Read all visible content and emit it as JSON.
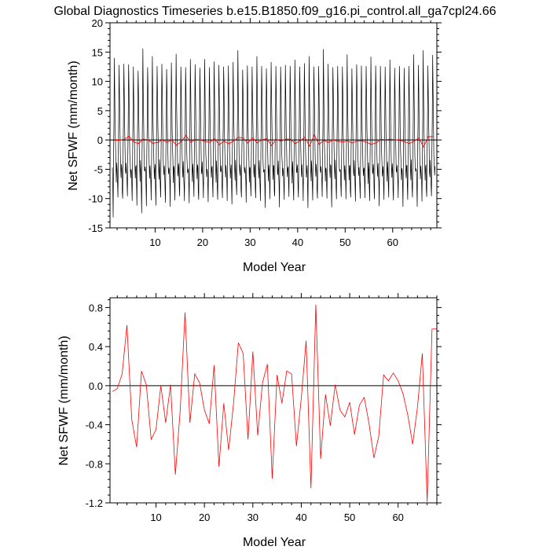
{
  "title": "Global Diagnostics Timeseries b.e15.B1850.f09_g16.pi_control.all_ga7cpl24.66",
  "colors": {
    "monthly": "#000000",
    "annual": "#ff0000",
    "zero_line": "#000000"
  },
  "chart_data": [
    {
      "type": "line",
      "xlabel": "Model Year",
      "ylabel": "Net SFWF (mm/month)",
      "xlim": [
        0.5,
        69.3
      ],
      "ylim": [
        -15,
        20
      ],
      "xticks": [
        10,
        20,
        30,
        40,
        50,
        60
      ],
      "yticks": [
        -15,
        -10,
        -5,
        0,
        5,
        10,
        15,
        20
      ],
      "ytick_labels": [
        "-15",
        "-10",
        "-5",
        "0",
        "5",
        "10",
        "15",
        "20"
      ],
      "zero_line": 0,
      "series": [
        {
          "key": "monthly",
          "style": "black-line",
          "monthly_pattern": [
            -5.2,
            -7.8,
            -9.3,
            -2.6,
            3.4,
            13.2,
            8.1,
            2.2,
            -1.7,
            -4.6,
            -6.4,
            -4.3
          ],
          "annual_peaks": [
            14.0,
            12.8,
            13.0,
            12.9,
            12.5,
            11.8,
            15.6,
            12.4,
            14.3,
            12.6,
            13.0,
            12.1,
            13.2,
            14.7,
            12.5,
            12.4,
            13.8,
            12.9,
            12.3,
            13.8,
            12.4,
            13.4,
            12.8,
            12.5,
            12.7,
            13.3,
            15.3,
            12.0,
            12.7,
            12.5,
            14.3,
            12.6,
            12.2,
            13.3,
            12.6,
            12.5,
            12.8,
            12.6,
            13.7,
            12.5,
            13.1,
            14.3,
            12.5,
            12.6,
            15.5,
            13.0,
            12.4,
            12.6,
            12.5,
            14.6,
            12.2,
            12.9,
            12.7,
            12.6,
            14.2,
            12.7,
            12.6,
            12.5,
            13.7,
            12.3,
            12.6,
            12.3,
            12.6,
            14.6,
            12.8,
            15.3,
            12.7,
            14.5
          ],
          "annual_troughs": [
            -13.2,
            -9.8,
            -10.0,
            -9.6,
            -10.4,
            -11.2,
            -12.5,
            -11.3,
            -10.3,
            -11.2,
            -9.8,
            -10.7,
            -11.4,
            -10.3,
            -9.6,
            -10.4,
            -10.8,
            -9.7,
            -10.2,
            -9.9,
            -10.6,
            -9.8,
            -10.2,
            -9.9,
            -10.4,
            -11.0,
            -9.4,
            -9.8,
            -10.7,
            -9.6,
            -9.9,
            -10.4,
            -11.6,
            -10.1,
            -9.6,
            -11.5,
            -10.2,
            -9.7,
            -10.3,
            -9.8,
            -10.4,
            -11.6,
            -10.3,
            -10.0,
            -9.7,
            -10.0,
            -11.5,
            -10.1,
            -9.7,
            -10.1,
            -9.8,
            -10.5,
            -10.0,
            -9.9,
            -10.4,
            -10.1,
            -11.3,
            -10.2,
            -9.8,
            -10.3,
            -9.9,
            -11.4,
            -10.2,
            -9.8,
            -11.4,
            -10.5,
            -9.7,
            -9.6
          ]
        },
        {
          "key": "annual",
          "style": "red-line",
          "values": "annual_means"
        }
      ]
    },
    {
      "type": "line",
      "xlabel": "Model Year",
      "ylabel": "Net SFWF (mm/month)",
      "xlim": [
        0.5,
        68
      ],
      "ylim": [
        -1.2,
        0.9
      ],
      "xticks": [
        10,
        20,
        30,
        40,
        50,
        60
      ],
      "yticks": [
        -1.2,
        -0.8,
        -0.4,
        0,
        0.4,
        0.8
      ],
      "ytick_labels": [
        "-1.2",
        "-0.8",
        "-0.4",
        "0.0",
        "0.4",
        "0.8"
      ],
      "zero_line": 0,
      "series": [
        {
          "key": "annual",
          "style": "red-line",
          "x": [
            1,
            2,
            3,
            4,
            5,
            6,
            7,
            8,
            9,
            10,
            11,
            12,
            13,
            14,
            15,
            16,
            17,
            18,
            19,
            20,
            21,
            22,
            23,
            24,
            25,
            26,
            27,
            28,
            29,
            30,
            31,
            32,
            33,
            34,
            35,
            36,
            37,
            38,
            39,
            40,
            41,
            42,
            43,
            44,
            45,
            46,
            47,
            48,
            49,
            50,
            51,
            52,
            53,
            54,
            55,
            56,
            57,
            58,
            59,
            60,
            61,
            62,
            63,
            64,
            65,
            66,
            67,
            68
          ],
          "values": [
            -0.06,
            -0.03,
            0.12,
            0.62,
            -0.35,
            -0.63,
            0.15,
            0.01,
            -0.55,
            -0.45,
            0.0,
            -0.38,
            0.01,
            -0.91,
            -0.25,
            0.75,
            -0.38,
            0.12,
            0.03,
            -0.25,
            -0.39,
            0.21,
            -0.83,
            -0.18,
            -0.66,
            -0.19,
            0.44,
            0.33,
            -0.55,
            0.35,
            -0.51,
            0.03,
            0.22,
            -0.95,
            0.11,
            -0.18,
            0.15,
            0.12,
            -0.62,
            -0.13,
            0.46,
            -1.05,
            0.83,
            -0.75,
            -0.09,
            -0.41,
            0.01,
            -0.25,
            -0.32,
            -0.17,
            -0.5,
            -0.2,
            -0.12,
            -0.39,
            -0.74,
            -0.52,
            0.11,
            0.05,
            0.13,
            0.05,
            -0.08,
            -0.3,
            -0.6,
            -0.22,
            0.33,
            -1.19,
            0.58,
            0.58
          ]
        }
      ]
    }
  ]
}
